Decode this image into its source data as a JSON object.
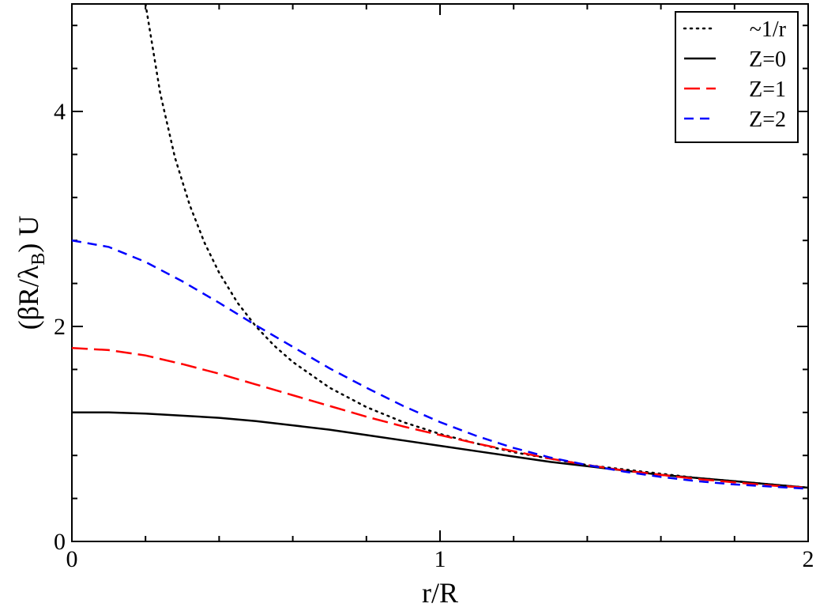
{
  "chart_data": {
    "type": "line",
    "xlabel": "r/R",
    "ylabel": {
      "main": "(βR/λ",
      "sub": "B",
      "tail": ") U"
    },
    "xlim": [
      0,
      2
    ],
    "ylim": [
      0,
      5
    ],
    "xticks": {
      "major": [
        0,
        1,
        2
      ],
      "major_labels": [
        "0",
        "1",
        "2"
      ],
      "minor": [
        0.2,
        0.4,
        0.6,
        0.8,
        1.2,
        1.4,
        1.6,
        1.8
      ]
    },
    "yticks": {
      "major": [
        0,
        2,
        4
      ],
      "major_labels": [
        "0",
        "2",
        "4"
      ],
      "minor": [
        0.4,
        0.8,
        1.2,
        1.6,
        2.4,
        2.8,
        3.2,
        3.6,
        4.4,
        4.8
      ]
    },
    "grid": false,
    "legend_position": "top-right",
    "series": [
      {
        "name": "~1/r",
        "color": "#000000",
        "style": "dotted",
        "x": [
          0.2,
          0.24,
          0.28,
          0.32,
          0.36,
          0.4,
          0.45,
          0.5,
          0.55,
          0.6,
          0.7,
          0.8,
          0.9,
          1.0,
          1.1,
          1.2,
          1.3,
          1.4,
          1.5,
          1.6,
          1.7,
          1.8,
          1.9,
          2.0
        ],
        "y": [
          5.0,
          4.17,
          3.57,
          3.13,
          2.78,
          2.5,
          2.22,
          2.0,
          1.82,
          1.67,
          1.43,
          1.25,
          1.11,
          1.0,
          0.91,
          0.83,
          0.77,
          0.71,
          0.67,
          0.63,
          0.59,
          0.56,
          0.53,
          0.5
        ]
      },
      {
        "name": "Z=0",
        "color": "#000000",
        "style": "solid",
        "x": [
          0,
          0.1,
          0.2,
          0.3,
          0.4,
          0.5,
          0.6,
          0.7,
          0.8,
          0.9,
          1.0,
          1.1,
          1.2,
          1.3,
          1.4,
          1.5,
          1.6,
          1.7,
          1.8,
          1.9,
          2.0
        ],
        "y": [
          1.2,
          1.2,
          1.19,
          1.17,
          1.15,
          1.12,
          1.08,
          1.04,
          0.99,
          0.94,
          0.89,
          0.84,
          0.79,
          0.74,
          0.7,
          0.66,
          0.62,
          0.59,
          0.56,
          0.53,
          0.5
        ]
      },
      {
        "name": "Z=1",
        "color": "#ff0000",
        "style": "long-dash",
        "x": [
          0,
          0.1,
          0.2,
          0.3,
          0.4,
          0.5,
          0.6,
          0.7,
          0.8,
          0.9,
          1.0,
          1.1,
          1.2,
          1.3,
          1.4,
          1.5,
          1.6,
          1.7,
          1.8,
          1.9,
          2.0
        ],
        "y": [
          1.8,
          1.78,
          1.73,
          1.65,
          1.56,
          1.46,
          1.36,
          1.26,
          1.16,
          1.07,
          0.99,
          0.91,
          0.84,
          0.77,
          0.71,
          0.66,
          0.62,
          0.58,
          0.55,
          0.52,
          0.5
        ]
      },
      {
        "name": "Z=2",
        "color": "#0000ff",
        "style": "short-dash",
        "x": [
          0,
          0.1,
          0.2,
          0.3,
          0.4,
          0.5,
          0.6,
          0.7,
          0.8,
          0.9,
          1.0,
          1.1,
          1.2,
          1.3,
          1.4,
          1.5,
          1.6,
          1.7,
          1.8,
          1.9,
          2.0
        ],
        "y": [
          2.8,
          2.74,
          2.6,
          2.42,
          2.22,
          2.01,
          1.81,
          1.61,
          1.43,
          1.26,
          1.11,
          0.98,
          0.87,
          0.78,
          0.71,
          0.65,
          0.6,
          0.56,
          0.53,
          0.51,
          0.49
        ]
      }
    ]
  }
}
